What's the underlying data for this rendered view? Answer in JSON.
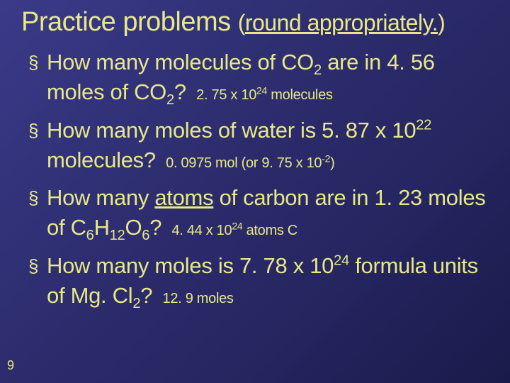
{
  "title_main": "Practice problems",
  "title_paren_open": "(",
  "title_underlined": "round appropriately.",
  "title_paren_close": ")",
  "items": [
    {
      "q_pre": "How many molecules of CO",
      "q_sub1": "2",
      "q_mid": " are in 4. 56 moles of CO",
      "q_sub2": "2",
      "q_end": "?",
      "ans_pre": "2. 75 x 10",
      "ans_sup": "24",
      "ans_post": " molecules"
    },
    {
      "q_pre": "How many moles of water is 5. 87 x 10",
      "q_sup1": "22",
      "q_end": " molecules?",
      "ans_pre": "0. 0975 mol (or 9. 75 x 10",
      "ans_sup": "-2",
      "ans_post": ")"
    },
    {
      "q_pre": "How many ",
      "q_u": "atoms",
      "q_mid": " of carbon are in 1. 23 moles of C",
      "q_sub1": "6",
      "q_mid2": "H",
      "q_sub2": "12",
      "q_mid3": "O",
      "q_sub3": "6",
      "q_end": "?",
      "ans_pre": "4. 44 x 10",
      "ans_sup": "24",
      "ans_post": " atoms C"
    },
    {
      "q_pre": "How many moles is 7. 78 x 10",
      "q_sup1": "24",
      "q_mid": " formula units of Mg. Cl",
      "q_sub1": "2",
      "q_end": "?",
      "ans_pre": "12. 9 moles"
    }
  ],
  "page_number": "9",
  "colors": {
    "text": "#e8e888",
    "bg_start": "#3a3a8a",
    "bg_end": "#1a1a4a"
  }
}
